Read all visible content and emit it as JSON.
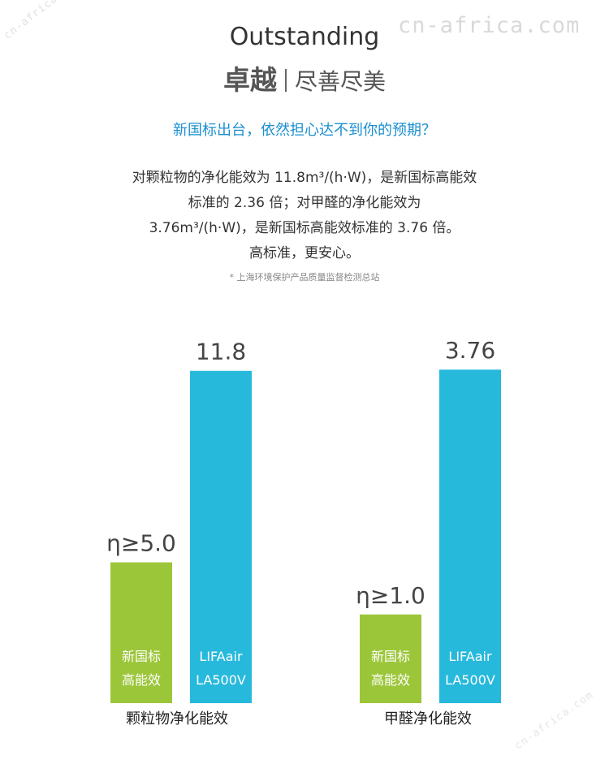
{
  "watermark": "cn-africa.com",
  "kicker": "Outstanding",
  "title": {
    "main": "卓越",
    "sub": "尽善尽美"
  },
  "question": "新国标出台，依然担心达不到你的预期？",
  "paragraph": {
    "line1": "对颗粒物的净化能效为 11.8m³/(h·W)，是新国标高能效",
    "line2": "标准的 2.36 倍；对甲醛的净化能效为",
    "line3": "3.76m³/(h·W)，是新国标高能效标准的 3.76 倍。",
    "line4": "高标准，更安心。"
  },
  "footnote": "* 上海环境保护产品质量监督检测总站",
  "colors": {
    "standard": "#9cc63a",
    "product": "#27b9dc",
    "question": "#1b8fd0"
  },
  "chart_data": [
    {
      "type": "bar",
      "title": "颗粒物净化能效",
      "categories": [
        "新国标高能效",
        "LIFAair LA500V"
      ],
      "values": [
        5.0,
        11.8
      ],
      "value_labels": [
        "η≥5.0",
        "11.8"
      ],
      "bar_labels": [
        [
          "新国标",
          "高能效"
        ],
        [
          "LIFAair",
          "LA500V"
        ]
      ],
      "ylim": [
        0,
        12.6
      ]
    },
    {
      "type": "bar",
      "title": "甲醛净化能效",
      "categories": [
        "新国标高能效",
        "LIFAair LA500V"
      ],
      "values": [
        1.0,
        3.76
      ],
      "value_labels": [
        "η≥1.0",
        "3.76"
      ],
      "bar_labels": [
        [
          "新国标",
          "高能效"
        ],
        [
          "LIFAair",
          "LA500V"
        ]
      ],
      "ylim": [
        0,
        4.0
      ]
    }
  ]
}
